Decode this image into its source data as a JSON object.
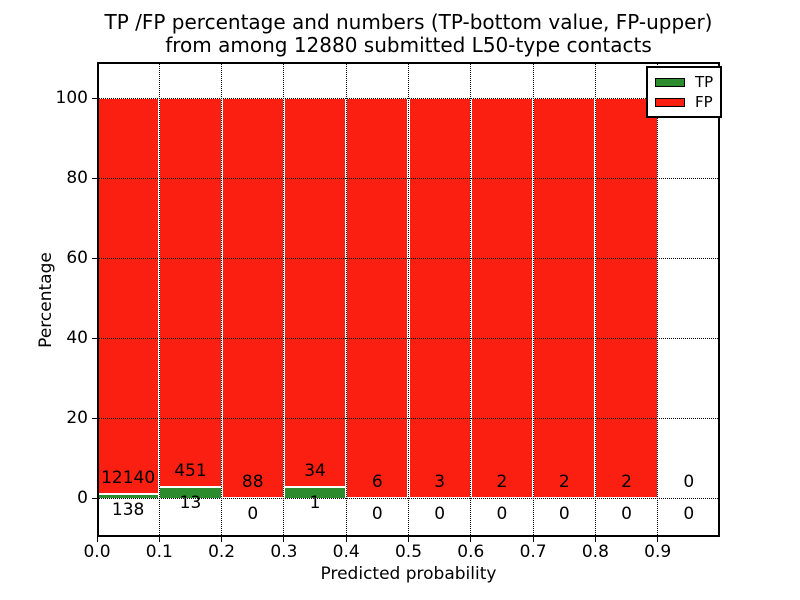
{
  "chart_data": {
    "type": "bar",
    "stacked": true,
    "normalized": "percent_of_bin_total",
    "title_line1": "TP /FP percentage and numbers (TP-bottom value, FP-upper)",
    "title_line2": "from among 12880 submitted L50-type contacts",
    "total_contacts_in_title": "12880",
    "xlabel": "Predicted probability",
    "ylabel": "Percentage",
    "categories": [
      "0.0-0.1",
      "0.1-0.2",
      "0.2-0.3",
      "0.3-0.4",
      "0.4-0.5",
      "0.5-0.6",
      "0.6-0.7",
      "0.7-0.8",
      "0.8-0.9",
      "0.9-1.0"
    ],
    "x_tick_labels": [
      "0.0",
      "0.1",
      "0.2",
      "0.3",
      "0.4",
      "0.5",
      "0.6",
      "0.7",
      "0.8",
      "0.9"
    ],
    "y_ticks": [
      0,
      20,
      40,
      60,
      80,
      100
    ],
    "xlim": [
      0.0,
      1.0
    ],
    "ylim": [
      0,
      100
    ],
    "grid": true,
    "grid_style": "dotted",
    "legend_position": "upper right",
    "series": [
      {
        "name": "TP",
        "color": "#2c8b2c",
        "values": [
          138,
          13,
          0,
          1,
          0,
          0,
          0,
          0,
          0,
          0
        ]
      },
      {
        "name": "FP",
        "color": "#fb1f12",
        "values": [
          12140,
          451,
          88,
          34,
          6,
          3,
          2,
          2,
          2,
          0
        ]
      }
    ],
    "annotation_note": "TP count shown below zero line, FP count shown above TP-bar top, per bin"
  },
  "colors": {
    "tp_green": "#2c8b2c",
    "fp_red": "#fb1f12",
    "axis_black": "#000000",
    "background": "#ffffff",
    "bar_edge": "#ffffff"
  }
}
